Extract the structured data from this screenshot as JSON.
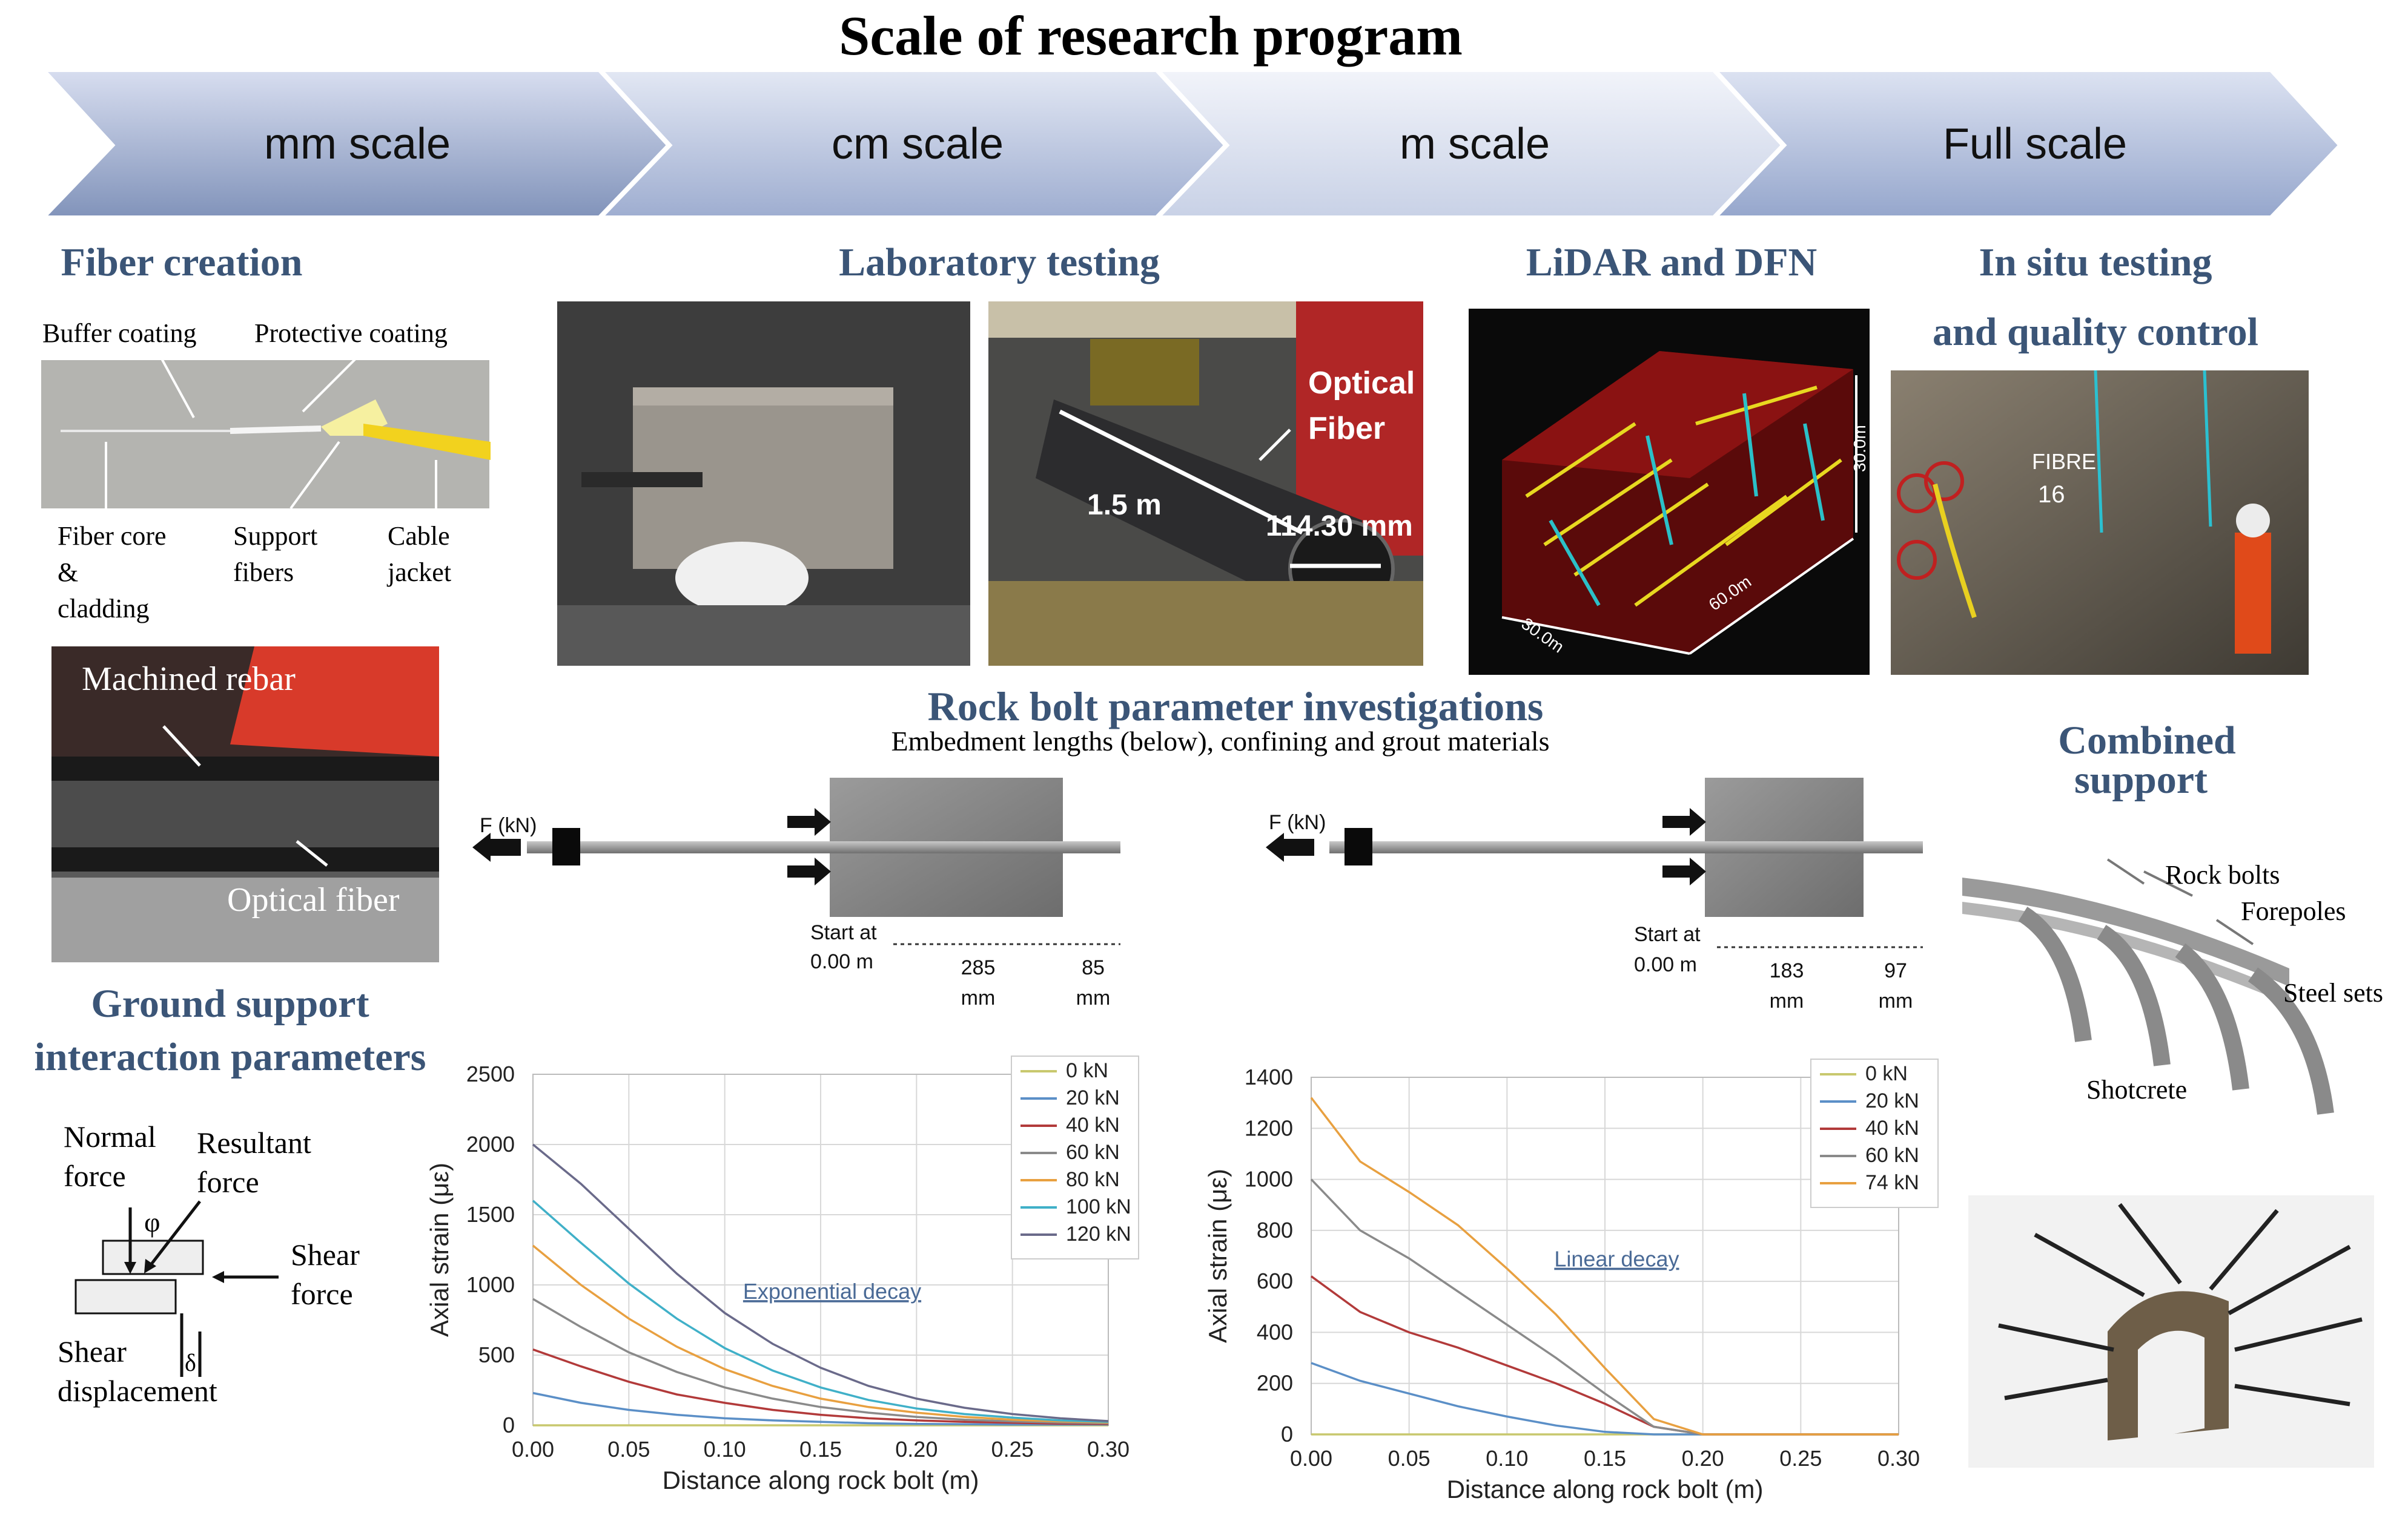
{
  "title": "Scale of research program",
  "scales": [
    "mm scale",
    "cm scale",
    "m scale",
    "Full scale"
  ],
  "sections": {
    "fiber_creation": "Fiber creation",
    "laboratory_testing": "Laboratory testing",
    "lidar_dfn": "LiDAR and DFN",
    "in_situ_line1": "In situ  testing",
    "in_situ_line2": "and quality control",
    "rock_bolt_title": "Rock bolt parameter investigations",
    "rock_bolt_subtitle": "Embedment lengths (below), confining and grout materials",
    "combined_line1": "Combined",
    "combined_line2": "support",
    "ground_line1": "Ground support",
    "ground_line2": "interaction parameters"
  },
  "fiber_labels": {
    "buffer": "Buffer coating",
    "protective": "Protective coating",
    "core1": "Fiber core",
    "core2": "&",
    "core3": "cladding",
    "support1": "Support",
    "support2": "fibers",
    "cable1": "Cable",
    "cable2": "jacket"
  },
  "rebar_labels": {
    "machined": "Machined rebar",
    "optical": "Optical fiber"
  },
  "lab_labels": {
    "optical1": "Optical",
    "optical2": "Fiber",
    "length": "1.5 m",
    "diameter": "114.30 mm"
  },
  "lidar_labels": {
    "h": "30.0m",
    "w": "60.0m",
    "d": "30.0m"
  },
  "in_situ_labels": {
    "fibre": "FIBRE",
    "num": "16"
  },
  "bolt_left": {
    "force": "F (kN)",
    "start1": "Start at",
    "start2": "0.00 m",
    "len1": "285",
    "len2": "85",
    "unit": "mm"
  },
  "bolt_right": {
    "force": "F (kN)",
    "start1": "Start at",
    "start2": "0.00 m",
    "len1": "183",
    "len2": "97",
    "unit": "mm"
  },
  "combined_labels": {
    "rock_bolts": "Rock bolts",
    "forepoles": "Forepoles",
    "steel_sets": "Steel sets",
    "shotcrete": "Shotcrete"
  },
  "ground_labels": {
    "normal1": "Normal",
    "normal2": "force",
    "resultant1": "Resultant",
    "resultant2": "force",
    "shear1": "Shear",
    "shear2": "force",
    "disp1": "Shear",
    "disp2": "displacement",
    "phi": "φ",
    "delta": "δ"
  },
  "colors": {
    "arrow_dark": "#7e8fb3",
    "arrow_mid": "#a9b7d6",
    "arrow_light": "#dfe5f1",
    "section_title": "#3b5577"
  },
  "chart_data": [
    {
      "type": "line",
      "title": "",
      "xlabel": "Distance along rock bolt (m)",
      "ylabel": "Axial strain (με)",
      "xlim": [
        0,
        0.3
      ],
      "ylim": [
        0,
        2500
      ],
      "xticks": [
        "0.00",
        "0.05",
        "0.10",
        "0.15",
        "0.20",
        "0.25",
        "0.30"
      ],
      "yticks": [
        "0",
        "500",
        "1000",
        "1500",
        "2000",
        "2500"
      ],
      "annotation": "Exponential decay",
      "grid": true,
      "legend": "top-right",
      "x": [
        0.0,
        0.025,
        0.05,
        0.075,
        0.1,
        0.125,
        0.15,
        0.175,
        0.2,
        0.225,
        0.25,
        0.275,
        0.3
      ],
      "series": [
        {
          "name": "0 kN",
          "color": "#c8c86e",
          "values": [
            0,
            0,
            0,
            0,
            0,
            0,
            0,
            0,
            0,
            0,
            0,
            0,
            0
          ]
        },
        {
          "name": "20 kN",
          "color": "#5b8fc7",
          "values": [
            230,
            160,
            110,
            75,
            50,
            35,
            25,
            15,
            10,
            8,
            5,
            5,
            5
          ]
        },
        {
          "name": "40 kN",
          "color": "#b23a3a",
          "values": [
            540,
            420,
            310,
            220,
            160,
            110,
            75,
            50,
            35,
            25,
            18,
            12,
            10
          ]
        },
        {
          "name": "60 kN",
          "color": "#8a8a8a",
          "values": [
            900,
            700,
            520,
            380,
            270,
            190,
            130,
            90,
            60,
            40,
            28,
            20,
            15
          ]
        },
        {
          "name": "80 kN",
          "color": "#e8a040",
          "values": [
            1280,
            1000,
            760,
            560,
            400,
            280,
            190,
            130,
            90,
            60,
            40,
            28,
            20
          ]
        },
        {
          "name": "100 kN",
          "color": "#40b0c8",
          "values": [
            1600,
            1300,
            1010,
            760,
            550,
            390,
            270,
            180,
            120,
            80,
            55,
            35,
            25
          ]
        },
        {
          "name": "120 kN",
          "color": "#6a6a8a",
          "values": [
            2000,
            1720,
            1400,
            1080,
            800,
            580,
            410,
            280,
            190,
            125,
            80,
            50,
            30
          ]
        }
      ]
    },
    {
      "type": "line",
      "title": "",
      "xlabel": "Distance along rock bolt (m)",
      "ylabel": "Axial strain (με)",
      "xlim": [
        0,
        0.3
      ],
      "ylim": [
        0,
        1400
      ],
      "xticks": [
        "0.00",
        "0.05",
        "0.10",
        "0.15",
        "0.20",
        "0.25",
        "0.30"
      ],
      "yticks": [
        "0",
        "200",
        "400",
        "600",
        "800",
        "1000",
        "1200",
        "1400"
      ],
      "annotation": "Linear decay",
      "grid": true,
      "legend": "top-right",
      "x": [
        0.0,
        0.025,
        0.05,
        0.075,
        0.1,
        0.125,
        0.15,
        0.175,
        0.2,
        0.225,
        0.25,
        0.275,
        0.3
      ],
      "series": [
        {
          "name": "0 kN",
          "color": "#c8c86e",
          "values": [
            0,
            0,
            0,
            0,
            0,
            0,
            0,
            0,
            0,
            0,
            0,
            0,
            0
          ]
        },
        {
          "name": "20 kN",
          "color": "#5b8fc7",
          "values": [
            280,
            210,
            160,
            110,
            70,
            35,
            10,
            0,
            0,
            0,
            0,
            0,
            0
          ]
        },
        {
          "name": "40 kN",
          "color": "#b23a3a",
          "values": [
            620,
            480,
            400,
            340,
            270,
            200,
            120,
            30,
            0,
            0,
            0,
            0,
            0
          ]
        },
        {
          "name": "60 kN",
          "color": "#8a8a8a",
          "values": [
            1000,
            800,
            690,
            560,
            430,
            300,
            160,
            30,
            0,
            0,
            0,
            0,
            0
          ]
        },
        {
          "name": "74 kN",
          "color": "#e8a040",
          "values": [
            1320,
            1070,
            950,
            820,
            650,
            470,
            260,
            60,
            0,
            0,
            0,
            0,
            0
          ]
        }
      ]
    }
  ]
}
